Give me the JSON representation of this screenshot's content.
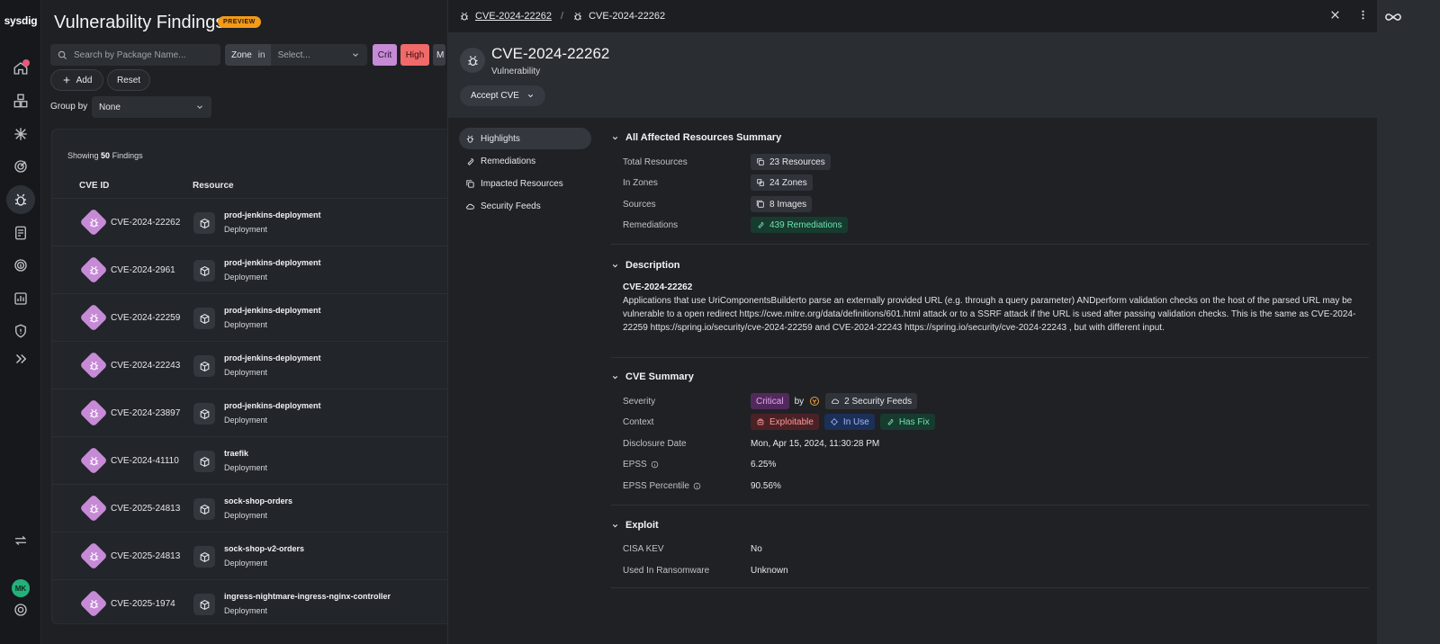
{
  "rail": {
    "logo": "sysdig",
    "avatar_initials": "MK"
  },
  "findings": {
    "title": "Vulnerability Findings",
    "badge": "PREVIEW",
    "search_placeholder": "Search by Package Name...",
    "zone_label": "Zone",
    "zone_op": "in",
    "zone_select": "Select...",
    "severity_buttons": [
      "Crit",
      "High",
      "M"
    ],
    "add_label": "Add",
    "reset_label": "Reset",
    "groupby_label": "Group by",
    "groupby_value": "None",
    "showing_prefix": "Showing",
    "showing_count": "50",
    "showing_suffix": "Findings",
    "columns": [
      "CVE ID",
      "Resource"
    ],
    "rows": [
      {
        "cve": "CVE-2024-22262",
        "resource": "prod-jenkins-deployment",
        "type": "Deployment"
      },
      {
        "cve": "CVE-2024-2961",
        "resource": "prod-jenkins-deployment",
        "type": "Deployment"
      },
      {
        "cve": "CVE-2024-22259",
        "resource": "prod-jenkins-deployment",
        "type": "Deployment"
      },
      {
        "cve": "CVE-2024-22243",
        "resource": "prod-jenkins-deployment",
        "type": "Deployment"
      },
      {
        "cve": "CVE-2024-23897",
        "resource": "prod-jenkins-deployment",
        "type": "Deployment"
      },
      {
        "cve": "CVE-2024-41110",
        "resource": "traefik",
        "type": "Deployment"
      },
      {
        "cve": "CVE-2025-24813",
        "resource": "sock-shop-orders",
        "type": "Deployment"
      },
      {
        "cve": "CVE-2025-24813",
        "resource": "sock-shop-v2-orders",
        "type": "Deployment"
      },
      {
        "cve": "CVE-2025-1974",
        "resource": "ingress-nightmare-ingress-nginx-controller",
        "type": "Deployment"
      }
    ]
  },
  "drawer": {
    "breadcrumb": [
      "CVE-2024-22262",
      "CVE-2024-22262"
    ],
    "title": "CVE-2024-22262",
    "subtitle": "Vulnerability",
    "accept_label": "Accept CVE",
    "nav": [
      "Highlights",
      "Remediations",
      "Impacted Resources",
      "Security Feeds"
    ],
    "summary": {
      "heading": "All Affected Resources Summary",
      "total_label": "Total Resources",
      "total_value": "23 Resources",
      "zones_label": "In Zones",
      "zones_value": "24 Zones",
      "sources_label": "Sources",
      "sources_value": "8 Images",
      "remediations_label": "Remediations",
      "remediations_value": "439 Remediations"
    },
    "description": {
      "heading": "Description",
      "cve": "CVE-2024-22262",
      "text": "Applications that use UriComponentsBuilderto parse an externally provided URL (e.g. through a query parameter) ANDperform validation checks on the host of the parsed URL may be vulnerable to a open redirect https://cwe.mitre.org/data/definitions/601.html attack or to a SSRF attack if the URL is used after passing validation checks. This is the same as CVE-2024-22259 https://spring.io/security/cve-2024-22259 and CVE-2024-22243 https://spring.io/security/cve-2024-22243 , but with different input."
    },
    "cve_summary": {
      "heading": "CVE Summary",
      "severity_label": "Severity",
      "severity_value": "Critical",
      "by": "by",
      "feeds_value": "2 Security Feeds",
      "context_label": "Context",
      "context_chips": [
        "Exploitable",
        "In Use",
        "Has Fix"
      ],
      "disclosure_label": "Disclosure Date",
      "disclosure_value": "Mon, Apr 15, 2024, 11:30:28 PM",
      "epss_label": "EPSS",
      "epss_value": "6.25%",
      "epss_pct_label": "EPSS Percentile",
      "epss_pct_value": "90.56%"
    },
    "exploit": {
      "heading": "Exploit",
      "cisa_label": "CISA KEV",
      "cisa_value": "No",
      "ransom_label": "Used In Ransomware",
      "ransom_value": "Unknown"
    }
  },
  "colors": {
    "accent_critical": "#c68ad6",
    "preview_badge": "#f29a1a",
    "remediation_green": "#6fe2b0"
  }
}
